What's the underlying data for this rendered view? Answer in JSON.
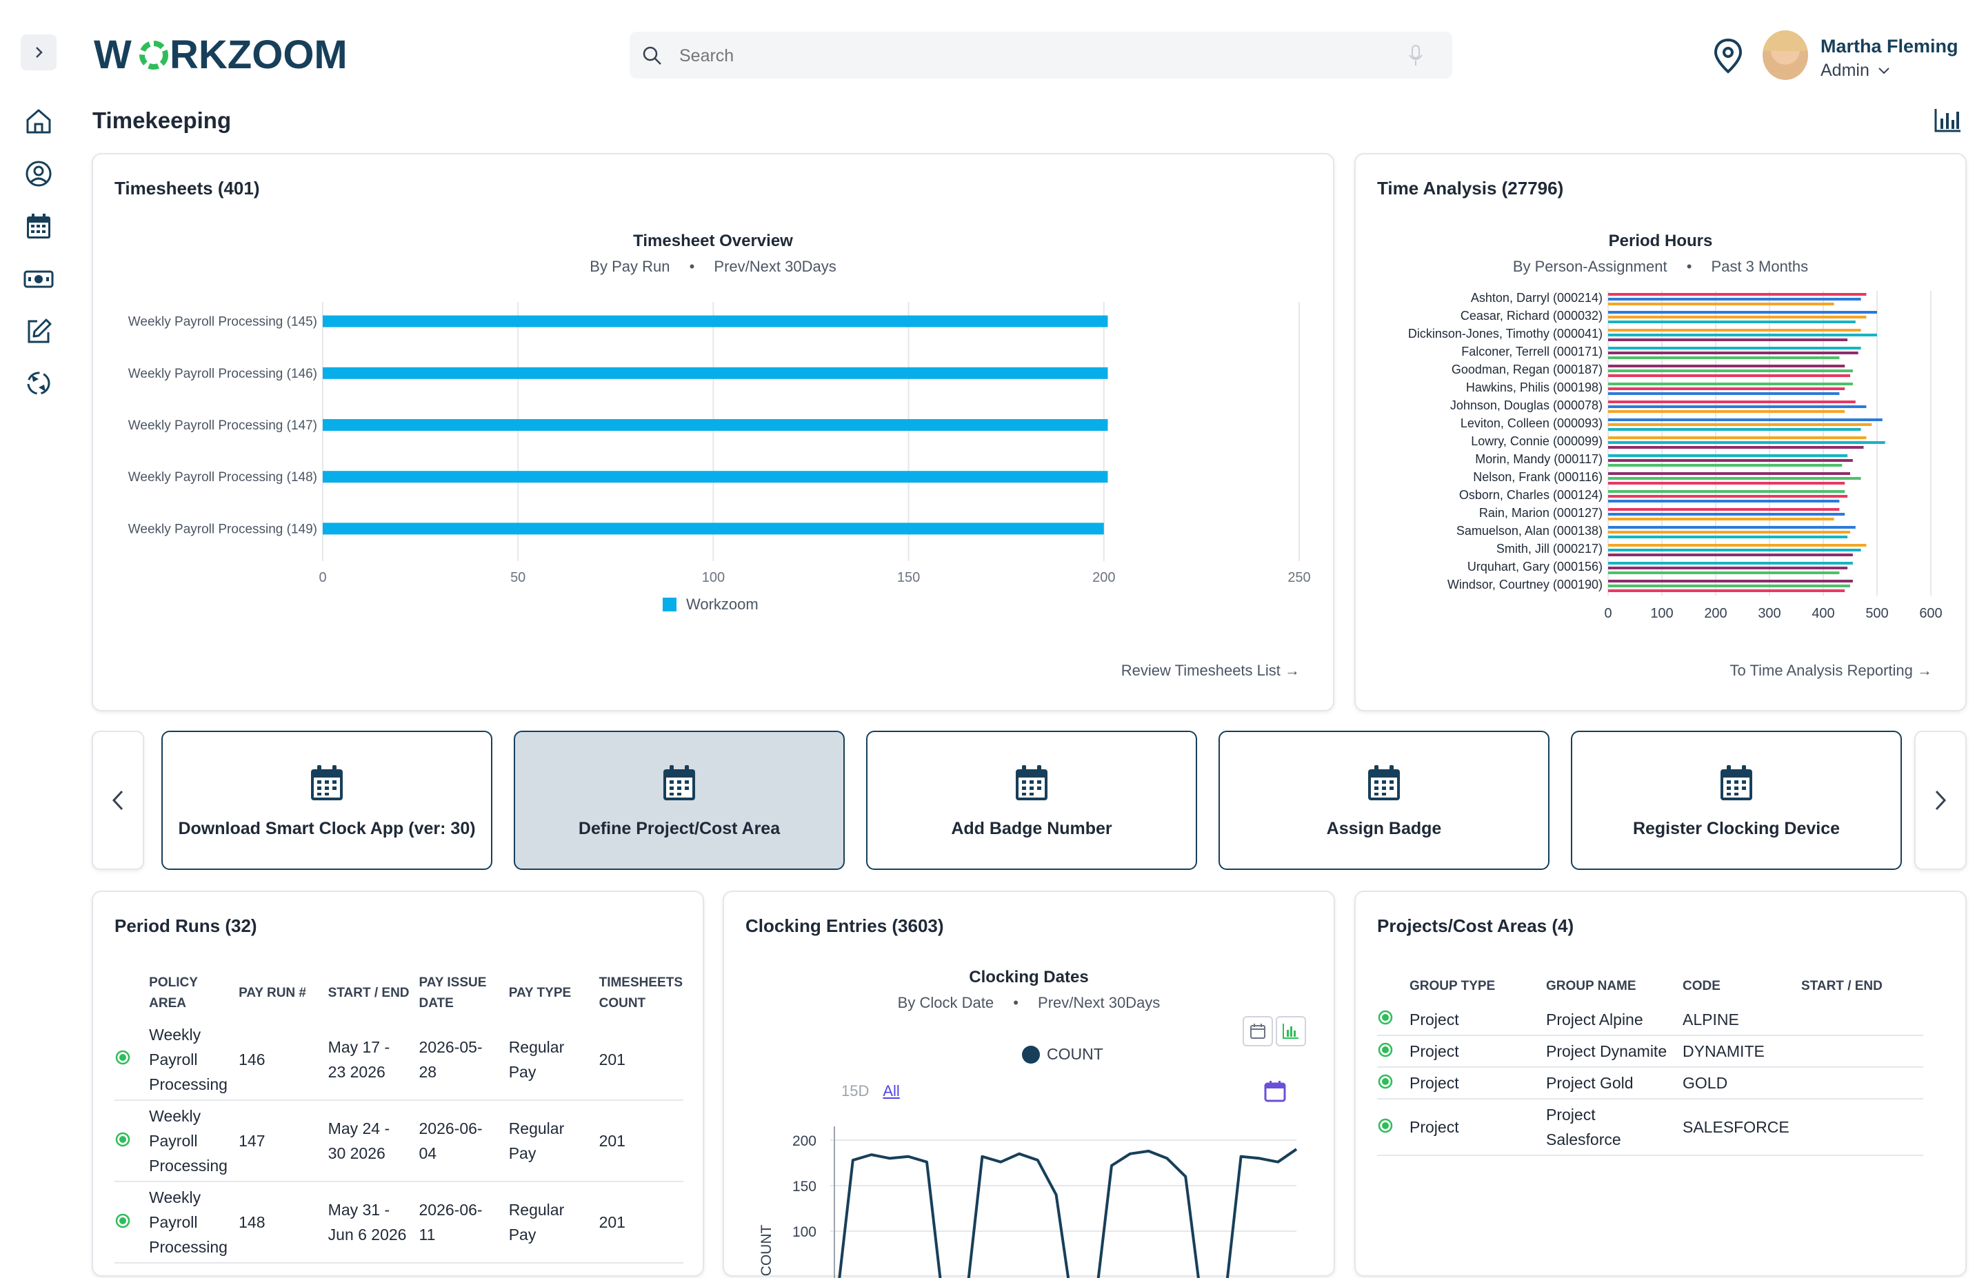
{
  "header": {
    "logo": "WORKZOOM",
    "search_placeholder": "Search",
    "user_name": "Martha Fleming",
    "user_role": "Admin"
  },
  "sidebar": {
    "items": [
      "expand-icon",
      "home-icon",
      "user-circle-icon",
      "calendar-icon",
      "money-icon",
      "edit-icon",
      "sync-icon"
    ]
  },
  "page": {
    "title": "Timekeeping"
  },
  "timesheets": {
    "title": "Timesheets (401)",
    "chart_title": "Timesheet Overview",
    "chart_sub_a": "By Pay Run",
    "chart_sub_b": "Prev/Next 30Days",
    "legend": "Workzoom",
    "link": "Review Timesheets List →"
  },
  "time_analysis": {
    "title": "Time Analysis (27796)",
    "chart_title": "Period Hours",
    "chart_sub_a": "By Person-Assignment",
    "chart_sub_b": "Past 3 Months",
    "link": "To Time Analysis Reporting →"
  },
  "quick_actions": [
    {
      "label": "Download Smart Clock App (ver: 30)",
      "active": false
    },
    {
      "label": "Define Project/Cost Area",
      "active": true
    },
    {
      "label": "Add Badge Number",
      "active": false
    },
    {
      "label": "Assign Badge",
      "active": false
    },
    {
      "label": "Register Clocking Device",
      "active": false
    }
  ],
  "period_runs": {
    "title": "Period Runs (32)",
    "headers": [
      "POLICY AREA",
      "PAY RUN #",
      "START / END",
      "PAY ISSUE DATE",
      "PAY TYPE",
      "TIMESHEETS COUNT"
    ],
    "rows": [
      {
        "policy": "Weekly Payroll Processing",
        "run": "146",
        "dates": "May 17 - 23 2026",
        "issue": "2026-05-28",
        "type": "Regular Pay",
        "count": "201"
      },
      {
        "policy": "Weekly Payroll Processing",
        "run": "147",
        "dates": "May 24 - 30 2026",
        "issue": "2026-06-04",
        "type": "Regular Pay",
        "count": "201"
      },
      {
        "policy": "Weekly Payroll Processing",
        "run": "148",
        "dates": "May 31 - Jun 6 2026",
        "issue": "2026-06-11",
        "type": "Regular Pay",
        "count": "201"
      }
    ]
  },
  "clocking": {
    "title": "Clocking Entries (3603)",
    "chart_title": "Clocking Dates",
    "chart_sub_a": "By Clock Date",
    "chart_sub_b": "Prev/Next 30Days",
    "legend": "COUNT",
    "range_15d": "15D",
    "range_all": "All",
    "ylabel": "COUNT"
  },
  "projects": {
    "title": "Projects/Cost Areas (4)",
    "headers": [
      "GROUP TYPE",
      "GROUP NAME",
      "CODE",
      "START / END"
    ],
    "rows": [
      {
        "type": "Project",
        "name": "Project Alpine",
        "code": "ALPINE"
      },
      {
        "type": "Project",
        "name": "Project Dynamite",
        "code": "DYNAMITE"
      },
      {
        "type": "Project",
        "name": "Project Gold",
        "code": "GOLD"
      },
      {
        "type": "Project",
        "name": "Project Salesforce",
        "code": "SALESFORCE"
      }
    ]
  },
  "colors": {
    "accent": "#173f5a",
    "bar": "#08aee9",
    "green": "#2ebd59",
    "logo_green": "#2ebd59"
  },
  "chart_data": [
    {
      "type": "bar",
      "orientation": "horizontal",
      "title": "Timesheet Overview",
      "categories": [
        "Weekly Payroll Processing (145)",
        "Weekly Payroll Processing (146)",
        "Weekly Payroll Processing (147)",
        "Weekly Payroll Processing (148)",
        "Weekly Payroll Processing (149)"
      ],
      "series": [
        {
          "name": "Workzoom",
          "values": [
            201,
            201,
            201,
            201,
            200
          ]
        }
      ],
      "xlim": [
        0,
        250
      ],
      "xticks": [
        0,
        50,
        100,
        150,
        200,
        250
      ],
      "grid": true,
      "legend": "bottom"
    },
    {
      "type": "bar",
      "orientation": "horizontal",
      "title": "Period Hours",
      "categories": [
        "Ashton, Darryl (000214)",
        "Ceasar, Richard (000032)",
        "Dickinson-Jones, Timothy (000041)",
        "Falconer, Terrell (000171)",
        "Goodman, Regan (000187)",
        "Hawkins, Philis (000198)",
        "Johnson, Douglas (000078)",
        "Leviton, Colleen (000093)",
        "Lowry, Connie (000099)",
        "Morin, Mandy (000117)",
        "Nelson, Frank (000116)",
        "Osborn, Charles (000124)",
        "Rain, Marion (000127)",
        "Samuelson, Alan (000138)",
        "Smith, Jill (000217)",
        "Urquhart, Gary (000156)",
        "Windsor, Courtney (000190)"
      ],
      "series": [
        {
          "values": [
            480,
            500,
            470,
            470,
            440,
            455,
            460,
            510,
            480,
            445,
            450,
            440,
            430,
            460,
            480,
            455,
            455
          ]
        },
        {
          "values": [
            470,
            480,
            500,
            465,
            455,
            440,
            480,
            490,
            515,
            455,
            470,
            445,
            440,
            450,
            470,
            445,
            450
          ]
        },
        {
          "values": [
            420,
            460,
            445,
            430,
            450,
            430,
            440,
            470,
            475,
            435,
            440,
            430,
            420,
            445,
            455,
            430,
            440
          ]
        }
      ],
      "xlim": [
        0,
        600
      ],
      "xticks": [
        0,
        100,
        200,
        300,
        400,
        500,
        600
      ],
      "grid": true
    },
    {
      "type": "line",
      "title": "Clocking Dates",
      "series": [
        {
          "name": "COUNT",
          "values": [
            0,
            178,
            184,
            180,
            182,
            176,
            0,
            0,
            182,
            176,
            185,
            178,
            140,
            0,
            0,
            172,
            185,
            188,
            180,
            160,
            0,
            0,
            182,
            180,
            176,
            190
          ]
        }
      ],
      "ylim": [
        100,
        200
      ],
      "yticks": [
        100,
        150,
        200
      ],
      "ylabel": "COUNT",
      "legend": "top"
    }
  ]
}
